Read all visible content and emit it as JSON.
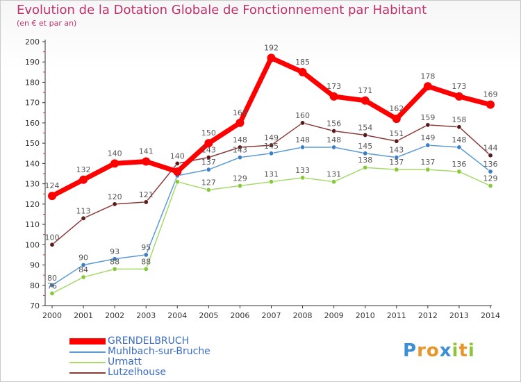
{
  "header": {
    "title": "Evolution de la Dotation Globale de Fonctionnement par Habitant",
    "subtitle": "(en € et par an)"
  },
  "logo": {
    "text": "Proxiti",
    "letters": [
      "P",
      "r",
      "o",
      "x",
      "i",
      "t",
      "i"
    ],
    "colors": [
      "#3c8fd6",
      "#e8962a",
      "#e8962a",
      "#3c8fd6",
      "#8fc43a",
      "#e8962a",
      "#8fc43a"
    ]
  },
  "chart_data": {
    "type": "line",
    "title": "Evolution de la Dotation Globale de Fonctionnement par Habitant",
    "ylabel": "(en € et par an)",
    "xlabel": "",
    "x": [
      "2000",
      "2001",
      "2002",
      "2003",
      "2004",
      "2005",
      "2006",
      "2007",
      "2008",
      "2009",
      "2010",
      "2011",
      "2012",
      "2013",
      "2014"
    ],
    "ylim": [
      70,
      200
    ],
    "yticks": [
      70,
      80,
      90,
      100,
      110,
      120,
      130,
      140,
      150,
      160,
      170,
      180,
      190,
      200
    ],
    "grid": false,
    "series": [
      {
        "name": "GRENDELBRUCH",
        "color": "#ff0000",
        "marker_color": "#ff0000",
        "emphasis": true,
        "values": [
          124,
          132,
          140,
          141,
          136,
          150,
          160,
          192,
          185,
          173,
          171,
          162,
          178,
          173,
          169
        ],
        "labels": [
          "124",
          "132",
          "140",
          "141",
          "",
          "150",
          "160",
          "192",
          "185",
          "173",
          "171",
          "162",
          "178",
          "173",
          "169"
        ]
      },
      {
        "name": "Muhlbach-sur-Bruche",
        "color": "#5b9bd5",
        "marker_color": "#3c7fc4",
        "emphasis": false,
        "values": [
          80,
          90,
          93,
          95,
          134,
          137,
          143,
          145,
          148,
          148,
          145,
          143,
          149,
          148,
          136
        ],
        "labels": [
          "80",
          "90",
          "93",
          "95",
          "",
          "137",
          "143",
          "145",
          "148",
          "148",
          "145",
          "143",
          "149",
          "148",
          "136"
        ]
      },
      {
        "name": "Urmatt",
        "color": "#a6d96a",
        "marker_color": "#86c93a",
        "emphasis": false,
        "values": [
          76,
          84,
          88,
          88,
          131,
          127,
          129,
          131,
          133,
          131,
          138,
          137,
          137,
          136,
          129
        ],
        "labels": [
          "76",
          "84",
          "88",
          "88",
          "",
          "127",
          "129",
          "131",
          "133",
          "131",
          "138",
          "137",
          "137",
          "136",
          "129"
        ]
      },
      {
        "name": "Lutzelhouse",
        "color": "#8b3a3a",
        "marker_color": "#5a1a1a",
        "emphasis": false,
        "values": [
          100,
          113,
          120,
          121,
          140,
          143,
          148,
          149,
          160,
          156,
          154,
          151,
          159,
          158,
          144
        ],
        "labels": [
          "100",
          "113",
          "120",
          "121",
          "140",
          "143",
          "148",
          "149",
          "160",
          "156",
          "154",
          "151",
          "159",
          "158",
          "144"
        ]
      }
    ]
  }
}
